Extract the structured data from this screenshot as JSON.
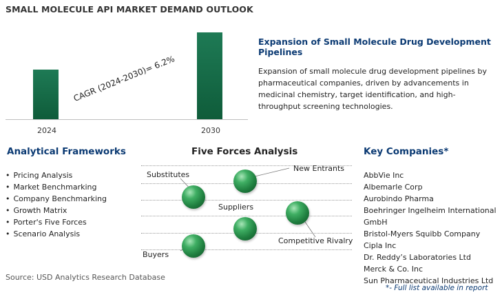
{
  "title": "SMALL MOLECULE API MARKET DEMAND OUTLOOK",
  "chart_data": {
    "type": "bar",
    "categories": [
      "2024",
      "2030"
    ],
    "annotation": "CAGR (2024-2030)=  6.2%"
  },
  "expansion": {
    "title": "Expansion of Small Molecule Drug Development Pipelines",
    "body": "Expansion of small molecule drug development pipelines by pharmaceutical companies, driven by advancements in medicinal chemistry, target identification, and high-throughput screening technologies."
  },
  "frameworks": {
    "title": "Analytical Frameworks",
    "items": [
      "Pricing Analysis",
      "Market Benchmarking",
      "Company Benchmarking",
      "Growth Matrix",
      "Porter's Five Forces",
      "Scenario Analysis"
    ]
  },
  "five_forces": {
    "title": "Five Forces Analysis",
    "labels": {
      "substitutes": "Substitutes",
      "new_entrants": "New Entrants",
      "suppliers": "Suppliers",
      "competitive_rivalry": "Competitive Rivalry",
      "buyers": "Buyers"
    }
  },
  "companies": {
    "title": "Key Companies*",
    "items": [
      "AbbVie Inc",
      "Albemarle Corp",
      "Aurobindo Pharma",
      "Boehringer Ingelheim International",
      "GmbH",
      "Bristol-Myers Squibb Company",
      "Cipla Inc",
      "Dr. Reddy’s Laboratories Ltd",
      "Merck & Co. Inc",
      "Sun Pharmaceutical Industries Ltd"
    ],
    "footnote": "*- Full list available in report"
  },
  "source": "Source: USD Analytics Research Database",
  "colors": {
    "bar": "#0f5c3a",
    "heading": "#0b3a73",
    "sphere": "#2e8b4a"
  }
}
